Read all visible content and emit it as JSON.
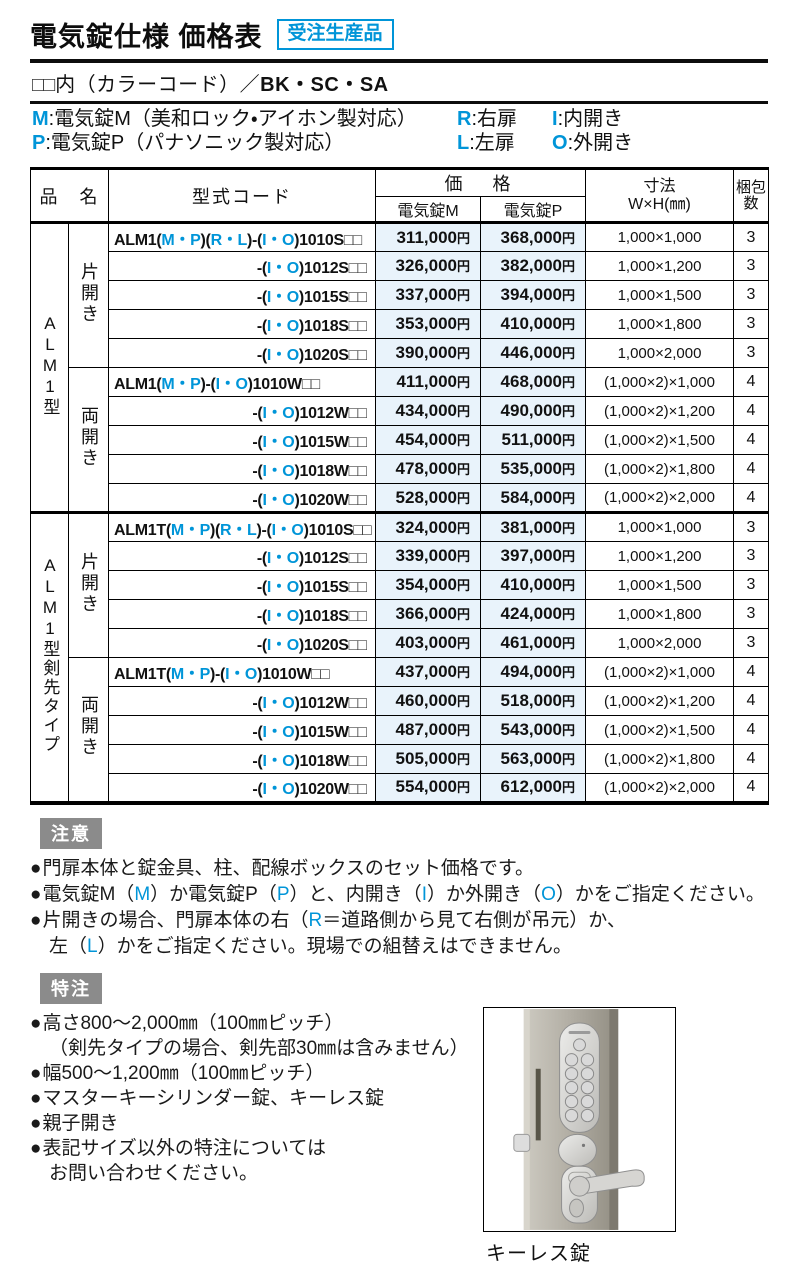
{
  "colors": {
    "accent_blue": "#0095d8",
    "price_bg": "#e9f3fb",
    "badge_gray": "#8b8b8b"
  },
  "bullet_char": "●",
  "header": {
    "title": "電気錠仕様 価格表",
    "order_badge": "受注生産品",
    "colorcode_boxes": "□□",
    "colorcode_text": "内（カラーコード）／",
    "colorcode_codes": "BK・SC・SA"
  },
  "legend": [
    {
      "key": "M",
      "text": ":電気錠M（美和ロック・アイホン製対応）"
    },
    {
      "key": "R",
      "text": ":右扉"
    },
    {
      "key": "I",
      "text": ":内開き"
    },
    {
      "key": "P",
      "text": ":電気錠P（パナソニック製対応）"
    },
    {
      "key": "L",
      "text": ":左扉"
    },
    {
      "key": "O",
      "text": ":外開き"
    }
  ],
  "table": {
    "col_product": "品　名",
    "col_code": "型式コード",
    "col_price": "価　格",
    "col_price_m": "電気錠M",
    "col_price_p": "電気錠P",
    "col_size_1": "寸法",
    "col_size_2": "W×H(㎜)",
    "col_pack_1": "梱包",
    "col_pack_2": "数",
    "yen": "円",
    "groups": [
      {
        "name": "ALM1型",
        "subgroups": [
          {
            "name": "片開き",
            "rows": [
              {
                "code": [
                  [
                    "ALM1(",
                    "t"
                  ],
                  [
                    "M・P",
                    "b"
                  ],
                  [
                    ")(",
                    "t"
                  ],
                  [
                    "R・L",
                    "b"
                  ],
                  [
                    ")-(",
                    "t"
                  ],
                  [
                    "I・O",
                    "b"
                  ],
                  [
                    ")1010S",
                    "t"
                  ],
                  [
                    "□□",
                    "x"
                  ]
                ],
                "m": "311,000",
                "p": "368,000",
                "size": "1,000×1,000",
                "pack": "3"
              },
              {
                "code": [
                  [
                    "-(",
                    "t"
                  ],
                  [
                    "I・O",
                    "b"
                  ],
                  [
                    ")1012S",
                    "t"
                  ],
                  [
                    "□□",
                    "x"
                  ]
                ],
                "m": "326,000",
                "p": "382,000",
                "size": "1,000×1,200",
                "pack": "3"
              },
              {
                "code": [
                  [
                    "-(",
                    "t"
                  ],
                  [
                    "I・O",
                    "b"
                  ],
                  [
                    ")1015S",
                    "t"
                  ],
                  [
                    "□□",
                    "x"
                  ]
                ],
                "m": "337,000",
                "p": "394,000",
                "size": "1,000×1,500",
                "pack": "3"
              },
              {
                "code": [
                  [
                    "-(",
                    "t"
                  ],
                  [
                    "I・O",
                    "b"
                  ],
                  [
                    ")1018S",
                    "t"
                  ],
                  [
                    "□□",
                    "x"
                  ]
                ],
                "m": "353,000",
                "p": "410,000",
                "size": "1,000×1,800",
                "pack": "3"
              },
              {
                "code": [
                  [
                    "-(",
                    "t"
                  ],
                  [
                    "I・O",
                    "b"
                  ],
                  [
                    ")1020S",
                    "t"
                  ],
                  [
                    "□□",
                    "x"
                  ]
                ],
                "m": "390,000",
                "p": "446,000",
                "size": "1,000×2,000",
                "pack": "3"
              }
            ]
          },
          {
            "name": "両開き",
            "rows": [
              {
                "code": [
                  [
                    "ALM1(",
                    "t"
                  ],
                  [
                    "M・P",
                    "b"
                  ],
                  [
                    ")-(",
                    "t"
                  ],
                  [
                    "I・O",
                    "b"
                  ],
                  [
                    ")1010W",
                    "t"
                  ],
                  [
                    "□□",
                    "x"
                  ]
                ],
                "m": "411,000",
                "p": "468,000",
                "size": "(1,000×2)×1,000",
                "pack": "4"
              },
              {
                "code": [
                  [
                    "-(",
                    "t"
                  ],
                  [
                    "I・O",
                    "b"
                  ],
                  [
                    ")1012W",
                    "t"
                  ],
                  [
                    "□□",
                    "x"
                  ]
                ],
                "m": "434,000",
                "p": "490,000",
                "size": "(1,000×2)×1,200",
                "pack": "4"
              },
              {
                "code": [
                  [
                    "-(",
                    "t"
                  ],
                  [
                    "I・O",
                    "b"
                  ],
                  [
                    ")1015W",
                    "t"
                  ],
                  [
                    "□□",
                    "x"
                  ]
                ],
                "m": "454,000",
                "p": "511,000",
                "size": "(1,000×2)×1,500",
                "pack": "4"
              },
              {
                "code": [
                  [
                    "-(",
                    "t"
                  ],
                  [
                    "I・O",
                    "b"
                  ],
                  [
                    ")1018W",
                    "t"
                  ],
                  [
                    "□□",
                    "x"
                  ]
                ],
                "m": "478,000",
                "p": "535,000",
                "size": "(1,000×2)×1,800",
                "pack": "4"
              },
              {
                "code": [
                  [
                    "-(",
                    "t"
                  ],
                  [
                    "I・O",
                    "b"
                  ],
                  [
                    ")1020W",
                    "t"
                  ],
                  [
                    "□□",
                    "x"
                  ]
                ],
                "m": "528,000",
                "p": "584,000",
                "size": "(1,000×2)×2,000",
                "pack": "4"
              }
            ]
          }
        ]
      },
      {
        "name": "ALM1型剣先タイプ",
        "subgroups": [
          {
            "name": "片開き",
            "rows": [
              {
                "code": [
                  [
                    "ALM1T(",
                    "t"
                  ],
                  [
                    "M・P",
                    "b"
                  ],
                  [
                    ")(",
                    "t"
                  ],
                  [
                    "R・L",
                    "b"
                  ],
                  [
                    ")-(",
                    "t"
                  ],
                  [
                    "I・O",
                    "b"
                  ],
                  [
                    ")1010S",
                    "t"
                  ],
                  [
                    "□□",
                    "x"
                  ]
                ],
                "m": "324,000",
                "p": "381,000",
                "size": "1,000×1,000",
                "pack": "3"
              },
              {
                "code": [
                  [
                    "-(",
                    "t"
                  ],
                  [
                    "I・O",
                    "b"
                  ],
                  [
                    ")1012S",
                    "t"
                  ],
                  [
                    "□□",
                    "x"
                  ]
                ],
                "m": "339,000",
                "p": "397,000",
                "size": "1,000×1,200",
                "pack": "3"
              },
              {
                "code": [
                  [
                    "-(",
                    "t"
                  ],
                  [
                    "I・O",
                    "b"
                  ],
                  [
                    ")1015S",
                    "t"
                  ],
                  [
                    "□□",
                    "x"
                  ]
                ],
                "m": "354,000",
                "p": "410,000",
                "size": "1,000×1,500",
                "pack": "3"
              },
              {
                "code": [
                  [
                    "-(",
                    "t"
                  ],
                  [
                    "I・O",
                    "b"
                  ],
                  [
                    ")1018S",
                    "t"
                  ],
                  [
                    "□□",
                    "x"
                  ]
                ],
                "m": "366,000",
                "p": "424,000",
                "size": "1,000×1,800",
                "pack": "3"
              },
              {
                "code": [
                  [
                    "-(",
                    "t"
                  ],
                  [
                    "I・O",
                    "b"
                  ],
                  [
                    ")1020S",
                    "t"
                  ],
                  [
                    "□□",
                    "x"
                  ]
                ],
                "m": "403,000",
                "p": "461,000",
                "size": "1,000×2,000",
                "pack": "3"
              }
            ]
          },
          {
            "name": "両開き",
            "rows": [
              {
                "code": [
                  [
                    "ALM1T(",
                    "t"
                  ],
                  [
                    "M・P",
                    "b"
                  ],
                  [
                    ")-(",
                    "t"
                  ],
                  [
                    "I・O",
                    "b"
                  ],
                  [
                    ")1010W",
                    "t"
                  ],
                  [
                    "□□",
                    "x"
                  ]
                ],
                "m": "437,000",
                "p": "494,000",
                "size": "(1,000×2)×1,000",
                "pack": "4"
              },
              {
                "code": [
                  [
                    "-(",
                    "t"
                  ],
                  [
                    "I・O",
                    "b"
                  ],
                  [
                    ")1012W",
                    "t"
                  ],
                  [
                    "□□",
                    "x"
                  ]
                ],
                "m": "460,000",
                "p": "518,000",
                "size": "(1,000×2)×1,200",
                "pack": "4"
              },
              {
                "code": [
                  [
                    "-(",
                    "t"
                  ],
                  [
                    "I・O",
                    "b"
                  ],
                  [
                    ")1015W",
                    "t"
                  ],
                  [
                    "□□",
                    "x"
                  ]
                ],
                "m": "487,000",
                "p": "543,000",
                "size": "(1,000×2)×1,500",
                "pack": "4"
              },
              {
                "code": [
                  [
                    "-(",
                    "t"
                  ],
                  [
                    "I・O",
                    "b"
                  ],
                  [
                    ")1018W",
                    "t"
                  ],
                  [
                    "□□",
                    "x"
                  ]
                ],
                "m": "505,000",
                "p": "563,000",
                "size": "(1,000×2)×1,800",
                "pack": "4"
              },
              {
                "code": [
                  [
                    "-(",
                    "t"
                  ],
                  [
                    "I・O",
                    "b"
                  ],
                  [
                    ")1020W",
                    "t"
                  ],
                  [
                    "□□",
                    "x"
                  ]
                ],
                "m": "554,000",
                "p": "612,000",
                "size": "(1,000×2)×2,000",
                "pack": "4"
              }
            ]
          }
        ]
      }
    ]
  },
  "notice": {
    "badge": "注意",
    "lines": [
      {
        "bullet": true,
        "seg": [
          [
            "門扉本体と錠金具、柱、配線ボックスのセット価格です。",
            "t"
          ]
        ]
      },
      {
        "bullet": true,
        "seg": [
          [
            "電気錠M（",
            "t"
          ],
          [
            "M",
            "b"
          ],
          [
            "）か電気錠P（",
            "t"
          ],
          [
            "P",
            "b"
          ],
          [
            "）と、内開き（",
            "t"
          ],
          [
            "I",
            "b"
          ],
          [
            "）か外開き（",
            "t"
          ],
          [
            "O",
            "b"
          ],
          [
            "）かをご指定ください。",
            "t"
          ]
        ]
      },
      {
        "bullet": true,
        "seg": [
          [
            "片開きの場合、門扉本体の右（",
            "t"
          ],
          [
            "R",
            "b"
          ],
          [
            "＝道路側から見て右側が吊元）か、",
            "t"
          ]
        ]
      },
      {
        "bullet": false,
        "seg": [
          [
            "左（",
            "t"
          ],
          [
            "L",
            "b"
          ],
          [
            "）かをご指定ください。現場での組替えはできません。",
            "t"
          ]
        ]
      }
    ]
  },
  "special": {
    "badge": "特注",
    "lines": [
      {
        "bullet": true,
        "seg": [
          [
            "高さ800～2,000㎜（100㎜ピッチ）",
            "t"
          ]
        ]
      },
      {
        "bullet": false,
        "seg": [
          [
            "（剣先タイプの場合、剣先部30㎜は含みません）",
            "t"
          ]
        ]
      },
      {
        "bullet": true,
        "seg": [
          [
            "幅500～1,200㎜（100㎜ピッチ）",
            "t"
          ]
        ]
      },
      {
        "bullet": true,
        "seg": [
          [
            "マスターキーシリンダー錠、キーレス錠",
            "t"
          ]
        ]
      },
      {
        "bullet": true,
        "seg": [
          [
            "親子開き",
            "t"
          ]
        ]
      },
      {
        "bullet": true,
        "seg": [
          [
            "表記サイズ以外の特注については",
            "t"
          ]
        ]
      },
      {
        "bullet": false,
        "seg": [
          [
            "お問い合わせください。",
            "t"
          ]
        ]
      }
    ]
  },
  "photo": {
    "caption": "キーレス錠"
  }
}
